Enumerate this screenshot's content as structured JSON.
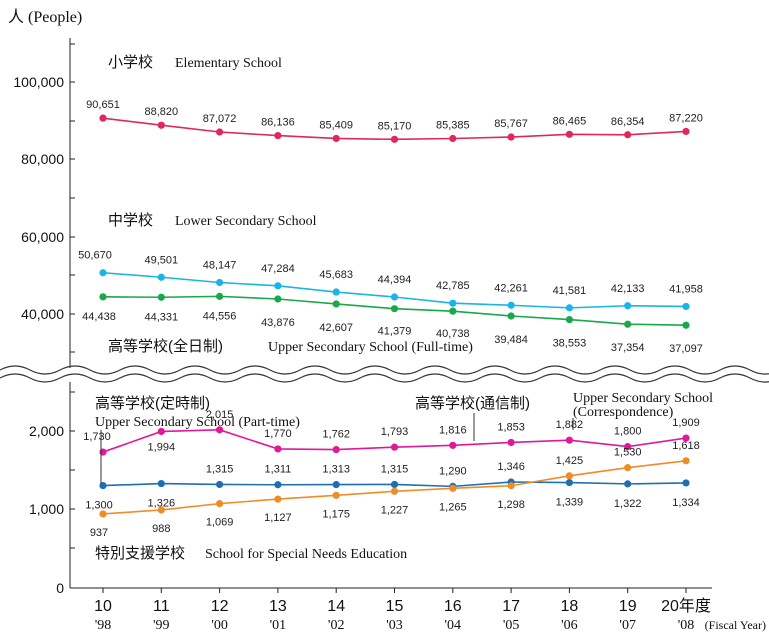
{
  "chart_data": {
    "type": "line",
    "title": "",
    "ylabel": "人 (People)",
    "xlabel": "(Fiscal Year)",
    "y_scale": "broken axis (upper panel 30,000–110,000; lower panel 0–3,000)",
    "y_ticks_top": [
      "100,000",
      "80,000",
      "60,000",
      "40,000"
    ],
    "y_ticks_bottom": [
      "2,000",
      "1,000",
      "0"
    ],
    "categories_top": [
      "10",
      "11",
      "12",
      "13",
      "14",
      "15",
      "16",
      "17",
      "18",
      "19",
      "20年度"
    ],
    "categories_bottom": [
      "'98",
      "'99",
      "'00",
      "'01",
      "'02",
      "'03",
      "'04",
      "'05",
      "'06",
      "'07",
      "'08"
    ],
    "fiscal_year_note": "(Fiscal Year)",
    "series": [
      {
        "name": "小学校 Elementary School",
        "jp": "小学校",
        "en": "Elementary School",
        "color": "#e0285a",
        "panel": "top",
        "values": [
          90651,
          88820,
          87072,
          86136,
          85409,
          85170,
          85385,
          85767,
          86465,
          86354,
          87220
        ],
        "labels": [
          "90,651",
          "88,820",
          "87,072",
          "86,136",
          "85,409",
          "85,170",
          "85,385",
          "85,767",
          "86,465",
          "86,354",
          "87,220"
        ]
      },
      {
        "name": "中学校 Lower Secondary School",
        "jp": "中学校",
        "en": "Lower Secondary School",
        "color": "#1ab4e8",
        "panel": "top",
        "values": [
          50670,
          49501,
          48147,
          47284,
          45683,
          44394,
          42785,
          42261,
          41581,
          42133,
          41958
        ],
        "labels": [
          "50,670",
          "49,501",
          "48,147",
          "47,284",
          "45,683",
          "44,394",
          "42,785",
          "42,261",
          "41,581",
          "42,133",
          "41,958"
        ]
      },
      {
        "name": "高等学校(全日制) Upper Secondary School (Full-time)",
        "jp": "高等学校(全日制)",
        "en": "Upper Secondary School (Full-time)",
        "color": "#1aa84a",
        "panel": "top",
        "values": [
          44438,
          44331,
          44556,
          43876,
          42607,
          41379,
          40738,
          39484,
          38553,
          37354,
          37097
        ],
        "labels": [
          "44,438",
          "44,331",
          "44,556",
          "43,876",
          "42,607",
          "41,379",
          "40,738",
          "39,484",
          "38,553",
          "37,354",
          "37,097"
        ]
      },
      {
        "name": "高等学校(通信制) Upper Secondary School (Correspondence)",
        "jp": "高等学校(通信制)",
        "en": "Upper Secondary School",
        "en2": "(Correspondence)",
        "color": "#e0189a",
        "panel": "bottom",
        "values": [
          1730,
          1994,
          2015,
          1770,
          1762,
          1793,
          1816,
          1853,
          1882,
          1800,
          1909
        ],
        "labels": [
          "1,730",
          "1,994",
          "2,015",
          "1,770",
          "1,762",
          "1,793",
          "1,816",
          "1,853",
          "1,882",
          "1,800",
          "1,909"
        ]
      },
      {
        "name": "高等学校(定時制) Upper Secondary School (Part-time)",
        "jp": "高等学校(定時制)",
        "en": "Upper Secondary School (Part-time)",
        "color": "#1e6eb4",
        "panel": "bottom",
        "values": [
          1300,
          1326,
          1315,
          1311,
          1313,
          1315,
          1290,
          1346,
          1339,
          1322,
          1334
        ],
        "labels": [
          "1,300",
          "1,326",
          "1,315",
          "1,311",
          "1,313",
          "1,315",
          "1,290",
          "1,346",
          "1,339",
          "1,322",
          "1,334"
        ]
      },
      {
        "name": "特別支援学校 School for Special Needs Education",
        "jp": "特別支援学校",
        "en": "School for Special Needs Education",
        "color": "#f08c28",
        "panel": "bottom",
        "values": [
          937,
          988,
          1069,
          1127,
          1175,
          1227,
          1265,
          1298,
          1425,
          1530,
          1618
        ],
        "labels": [
          "937",
          "988",
          "1,069",
          "1,127",
          "1,175",
          "1,227",
          "1,265",
          "1,298",
          "1,425",
          "1,530",
          "1,618"
        ]
      }
    ]
  }
}
